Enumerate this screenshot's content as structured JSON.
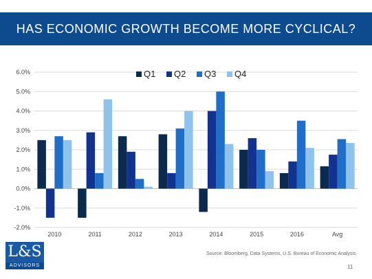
{
  "slide": {
    "title": "HAS ECONOMIC GROWTH BECOME MORE CYCLICAL?",
    "source": "Source: Bloomberg, Data Systems, U.S. Bureau of Economic Analysis",
    "page_number": "11",
    "logo_main": "L&S",
    "logo_sub": "ADVISORS"
  },
  "chart_data": {
    "type": "bar",
    "categories": [
      "2010",
      "2011",
      "2012",
      "2013",
      "2014",
      "2015",
      "2016",
      "Avg"
    ],
    "series": [
      {
        "name": "Q1",
        "color": "#0b2a4e",
        "values": [
          2.5,
          -1.5,
          2.7,
          2.8,
          -1.2,
          2.0,
          0.8,
          1.15
        ]
      },
      {
        "name": "Q2",
        "color": "#11338f",
        "values": [
          -1.5,
          2.9,
          1.9,
          0.8,
          4.0,
          2.6,
          1.4,
          1.75
        ]
      },
      {
        "name": "Q3",
        "color": "#1f6ec9",
        "values": [
          2.7,
          0.8,
          0.5,
          3.1,
          5.0,
          2.0,
          3.5,
          2.55
        ]
      },
      {
        "name": "Q4",
        "color": "#8fc2ec",
        "values": [
          2.5,
          4.6,
          0.1,
          4.0,
          2.3,
          0.9,
          2.1,
          2.35
        ]
      }
    ],
    "ylim": [
      -2.0,
      6.0
    ],
    "y_ticks": [
      "-2.0%",
      "-1.0%",
      "0.0%",
      "1.0%",
      "2.0%",
      "3.0%",
      "4.0%",
      "5.0%",
      "6.0%"
    ],
    "grid": true,
    "legend_position": "top"
  }
}
